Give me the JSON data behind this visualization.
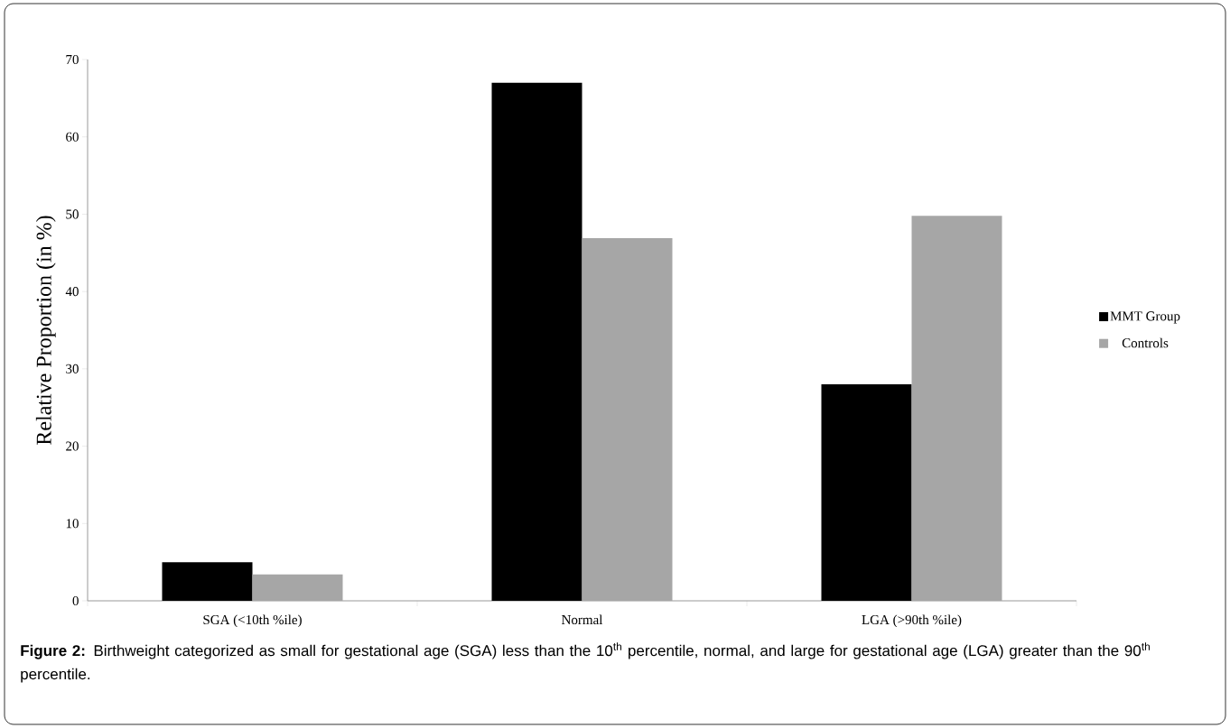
{
  "chart_data": {
    "type": "bar",
    "categories": [
      "SGA (<10th %ile)",
      "Normal",
      "LGA (>90th %ile)"
    ],
    "series": [
      {
        "name": "MMT Group",
        "color": "#000000",
        "values": [
          5,
          67,
          28
        ]
      },
      {
        "name": "Controls",
        "color": "#a6a6a6",
        "values": [
          3.4,
          46.9,
          49.8
        ]
      }
    ],
    "ylabel": "Relative Proportion (in %)",
    "ylim": [
      0,
      70
    ],
    "yticks": [
      0,
      10,
      20,
      30,
      40,
      50,
      60,
      70
    ],
    "legend": "right",
    "annotations": [
      "**Figure 2:** Birthweight categorized as small for gestational age (SGA) less than the 10$^{th}$ percentile, normal, and large for gestational age (LGA) greater than the 90$^{th}$ percentile."
    ]
  }
}
